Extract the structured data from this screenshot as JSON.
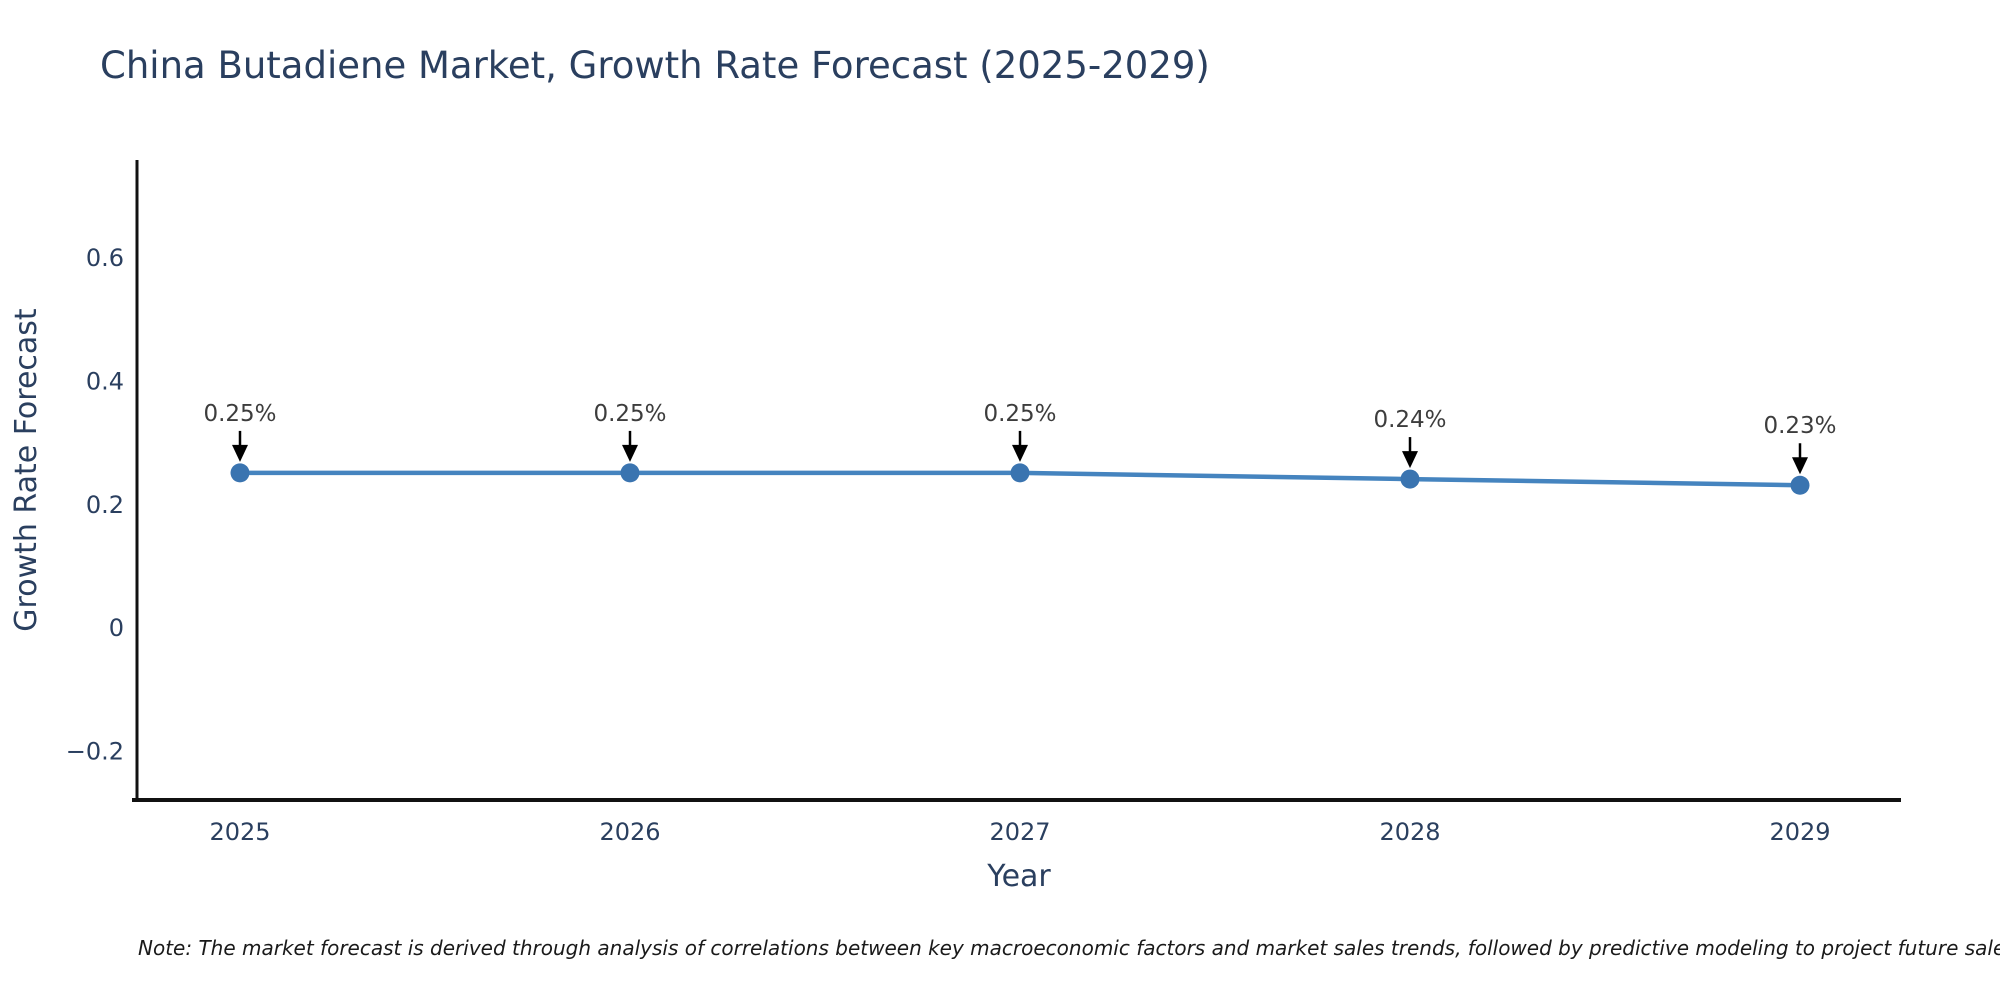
{
  "title": "China Butadiene Market, Growth Rate Forecast (2025-2029)",
  "note": "Note: The market forecast is derived through analysis of correlations between key macroeconomic factors and market sales trends, followed by predictive modeling to project future sales",
  "chart_data": {
    "type": "line",
    "title": "China Butadiene Market, Growth Rate Forecast (2025-2029)",
    "x": [
      2025,
      2026,
      2027,
      2028,
      2029
    ],
    "xtick_labels": [
      "2025",
      "2026",
      "2027",
      "2028",
      "2029"
    ],
    "series": [
      {
        "name": "Growth Rate Forecast",
        "values": [
          0.25,
          0.25,
          0.25,
          0.24,
          0.23
        ]
      }
    ],
    "point_labels": [
      "0.25%",
      "0.25%",
      "0.25%",
      "0.24%",
      "0.23%"
    ],
    "xlabel": "Year",
    "ylabel": "Growth Rate Forecast",
    "ytick_values": [
      0.6,
      0.4,
      0.2,
      0,
      -0.2
    ],
    "ytick_labels": [
      "0.6",
      "0.4",
      "0.2",
      "0",
      "−0.2"
    ],
    "ylim": [
      -0.28,
      0.757
    ],
    "grid": false,
    "legend": "none",
    "colors": {
      "line": "#4584bf",
      "marker": "#3a74b0",
      "arrow": "#000000",
      "axis": "#111111",
      "text": "#2a3f5f",
      "annotation_text": "#3d3d3d"
    }
  }
}
